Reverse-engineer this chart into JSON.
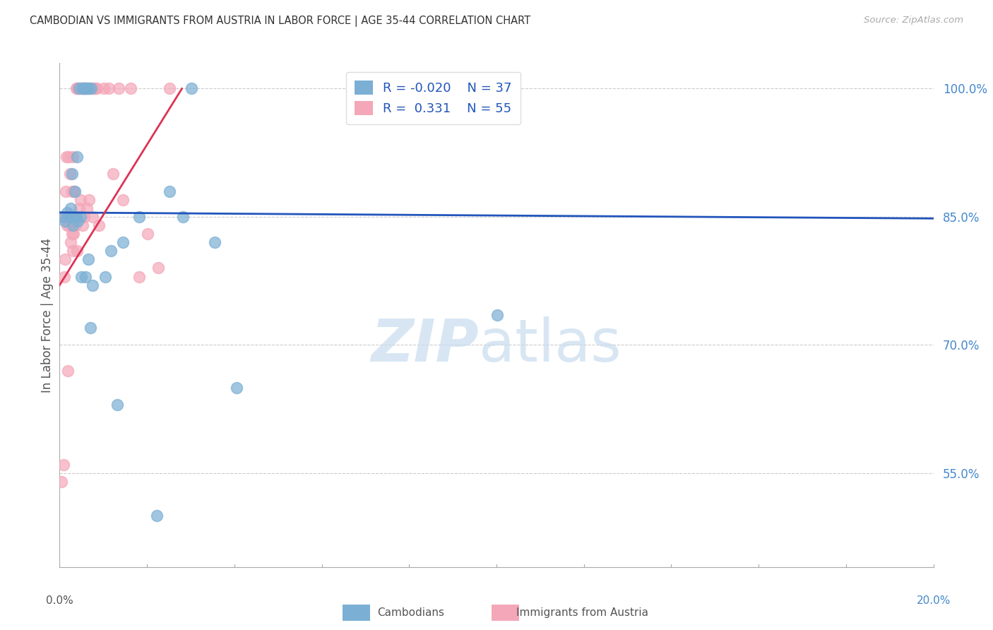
{
  "title": "CAMBODIAN VS IMMIGRANTS FROM AUSTRIA IN LABOR FORCE | AGE 35-44 CORRELATION CHART",
  "source": "Source: ZipAtlas.com",
  "ylabel": "In Labor Force | Age 35-44",
  "yticks": [
    55.0,
    70.0,
    85.0,
    100.0
  ],
  "ytick_labels": [
    "55.0%",
    "70.0%",
    "85.0%",
    "100.0%"
  ],
  "xmin": 0.0,
  "xmax": 20.0,
  "ymin": 44.0,
  "ymax": 103.0,
  "legend_r_blue": "-0.020",
  "legend_n_blue": "37",
  "legend_r_pink": "0.331",
  "legend_n_pink": "55",
  "blue_color": "#7BAFD4",
  "pink_color": "#F4A7B9",
  "trend_blue": "#2255BB",
  "trend_pink": "#DD3355",
  "blue_trend_x": [
    0.0,
    20.0
  ],
  "blue_trend_y": [
    85.5,
    84.8
  ],
  "pink_trend_x": [
    0.0,
    2.8
  ],
  "pink_trend_y": [
    77.0,
    100.0
  ],
  "cambodian_x": [
    0.08,
    0.12,
    0.18,
    0.22,
    0.25,
    0.3,
    0.32,
    0.38,
    0.42,
    0.48,
    0.52,
    0.55,
    0.6,
    0.62,
    0.68,
    0.72,
    0.28,
    0.35,
    0.4,
    0.45,
    0.5,
    0.6,
    0.65,
    0.7,
    0.75,
    1.05,
    1.18,
    1.32,
    1.45,
    2.22,
    2.52,
    3.55,
    4.05,
    1.82,
    3.02,
    10.02,
    2.82
  ],
  "cambodian_y": [
    85.0,
    84.5,
    85.5,
    85.0,
    86.0,
    84.0,
    85.0,
    85.0,
    84.5,
    85.0,
    100.0,
    100.0,
    100.0,
    100.0,
    100.0,
    100.0,
    90.0,
    88.0,
    92.0,
    100.0,
    78.0,
    78.0,
    80.0,
    72.0,
    77.0,
    78.0,
    81.0,
    63.0,
    82.0,
    50.0,
    88.0,
    82.0,
    65.0,
    85.0,
    100.0,
    73.5,
    85.0
  ],
  "austria_x": [
    0.05,
    0.09,
    0.1,
    0.1,
    0.12,
    0.14,
    0.16,
    0.16,
    0.18,
    0.2,
    0.2,
    0.22,
    0.24,
    0.26,
    0.28,
    0.28,
    0.3,
    0.3,
    0.32,
    0.34,
    0.36,
    0.38,
    0.38,
    0.4,
    0.4,
    0.42,
    0.44,
    0.46,
    0.48,
    0.5,
    0.52,
    0.54,
    0.56,
    0.58,
    0.6,
    0.62,
    0.65,
    0.68,
    0.72,
    0.75,
    0.78,
    0.82,
    0.85,
    0.9,
    1.02,
    1.12,
    1.22,
    1.35,
    1.45,
    1.62,
    1.82,
    2.02,
    2.25,
    2.52,
    0.19
  ],
  "austria_y": [
    54.0,
    56.0,
    78.0,
    85.0,
    80.0,
    88.0,
    85.0,
    92.0,
    84.0,
    85.0,
    92.0,
    84.0,
    90.0,
    82.0,
    83.0,
    88.0,
    81.0,
    92.0,
    83.0,
    88.0,
    84.0,
    100.0,
    85.0,
    100.0,
    81.0,
    100.0,
    86.0,
    100.0,
    87.0,
    100.0,
    84.0,
    100.0,
    85.0,
    100.0,
    100.0,
    86.0,
    100.0,
    87.0,
    100.0,
    85.0,
    100.0,
    100.0,
    100.0,
    84.0,
    100.0,
    100.0,
    90.0,
    100.0,
    87.0,
    100.0,
    78.0,
    83.0,
    79.0,
    100.0,
    67.0
  ]
}
